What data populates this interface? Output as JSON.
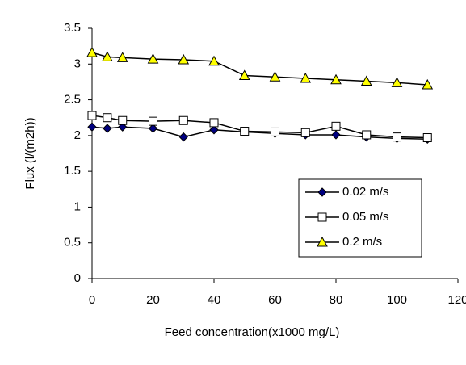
{
  "chart_data": {
    "type": "line",
    "x_label": "Feed concentration(x1000 mg/L)",
    "y_label": "Flux (l/(m2h))",
    "x": [
      0,
      5,
      10,
      20,
      30,
      40,
      50,
      60,
      70,
      80,
      90,
      100,
      110
    ],
    "series": [
      {
        "name": "0.02 m/s",
        "color": "#000080",
        "marker": "diamond",
        "values": [
          2.12,
          2.1,
          2.12,
          2.1,
          1.98,
          2.08,
          2.05,
          2.03,
          2.01,
          2.01,
          1.98,
          1.96,
          1.95
        ]
      },
      {
        "name": "0.05 m/s",
        "color": "#ffffff",
        "marker": "square",
        "values": [
          2.28,
          2.25,
          2.21,
          2.2,
          2.21,
          2.18,
          2.06,
          2.05,
          2.04,
          2.13,
          2.01,
          1.98,
          1.97
        ]
      },
      {
        "name": "0.2 m/s",
        "color": "#ffff00",
        "marker": "triangle",
        "values": [
          3.16,
          3.1,
          3.09,
          3.07,
          3.06,
          3.04,
          2.84,
          2.82,
          2.8,
          2.78,
          2.76,
          2.74,
          2.71
        ]
      }
    ],
    "line_color": "#000000",
    "xlim": [
      0,
      120
    ],
    "xticks": [
      0,
      20,
      40,
      60,
      80,
      100,
      120
    ],
    "ylim": [
      0,
      3.5
    ],
    "yticks": [
      0,
      0.5,
      1,
      1.5,
      2,
      2.5,
      3,
      3.5
    ],
    "grid": false,
    "legend": "lower right"
  }
}
